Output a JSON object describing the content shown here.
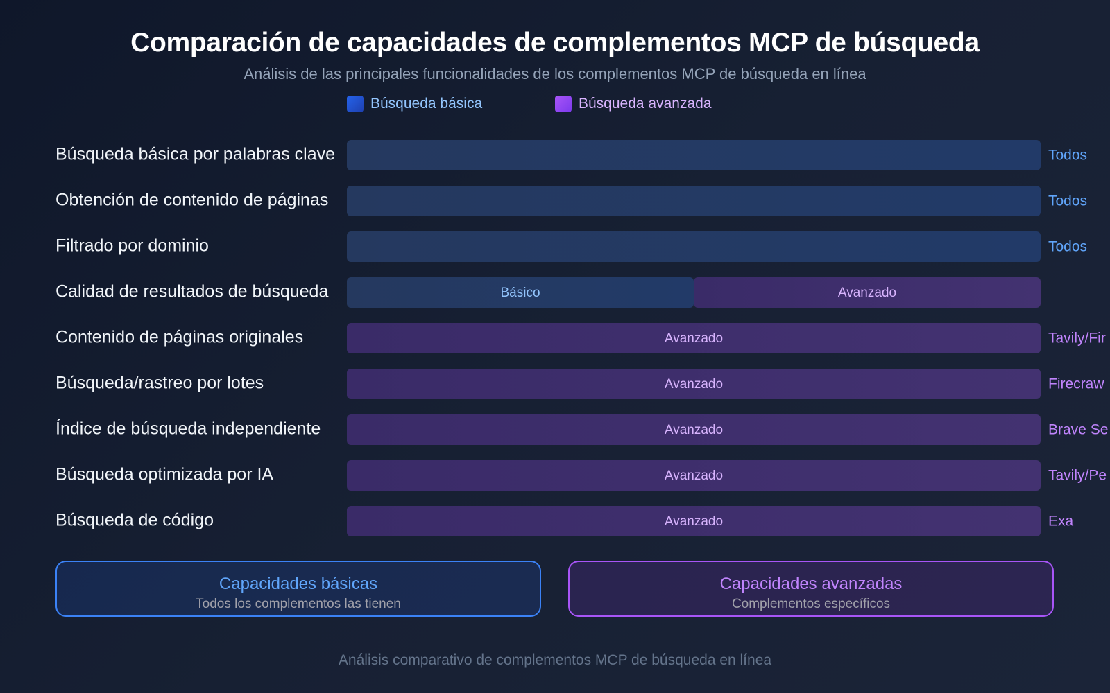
{
  "title": "Comparación de capacidades de complementos MCP de búsqueda",
  "subtitle": "Análisis de las principales funcionalidades de los complementos MCP de búsqueda en línea",
  "legend": {
    "basic": "Búsqueda básica",
    "advanced": "Búsqueda avanzada"
  },
  "colors": {
    "basic": "#2563eb",
    "advanced": "#9333ea",
    "basic_text": "#60a5fa",
    "advanced_text": "#c084fc"
  },
  "chart_data": {
    "type": "bar",
    "categories": [
      "Búsqueda básica por palabras clave",
      "Obtención de contenido de páginas",
      "Filtrado por dominio",
      "Calidad de resultados de búsqueda",
      "Contenido de páginas originales",
      "Búsqueda/rastreo por lotes",
      "Índice de búsqueda independiente",
      "Búsqueda optimizada por IA",
      "Búsqueda de código"
    ],
    "series": [
      {
        "name": "Búsqueda básica",
        "values": [
          100,
          100,
          100,
          50,
          0,
          0,
          0,
          0,
          0
        ],
        "labels": [
          "",
          "",
          "",
          "Básico",
          "",
          "",
          "",
          "",
          ""
        ]
      },
      {
        "name": "Búsqueda avanzada",
        "values": [
          0,
          0,
          0,
          50,
          100,
          100,
          100,
          100,
          100
        ],
        "labels": [
          "",
          "",
          "",
          "Avanzado",
          "Avanzado",
          "Avanzado",
          "Avanzado",
          "Avanzado",
          "Avanzado"
        ]
      }
    ],
    "annotations": [
      "Todos",
      "Todos",
      "Todos",
      "",
      "Tavily/Fir",
      "Firecraw",
      "Brave Se",
      "Tavily/Pe",
      "Exa"
    ],
    "xlim": [
      0,
      100
    ]
  },
  "summary": {
    "basic": {
      "title": "Capacidades básicas",
      "note": "Todos los complementos las tienen"
    },
    "advanced": {
      "title": "Capacidades avanzadas",
      "note": "Complementos específicos"
    }
  },
  "footer": "Análisis comparativo de complementos MCP de búsqueda en línea"
}
